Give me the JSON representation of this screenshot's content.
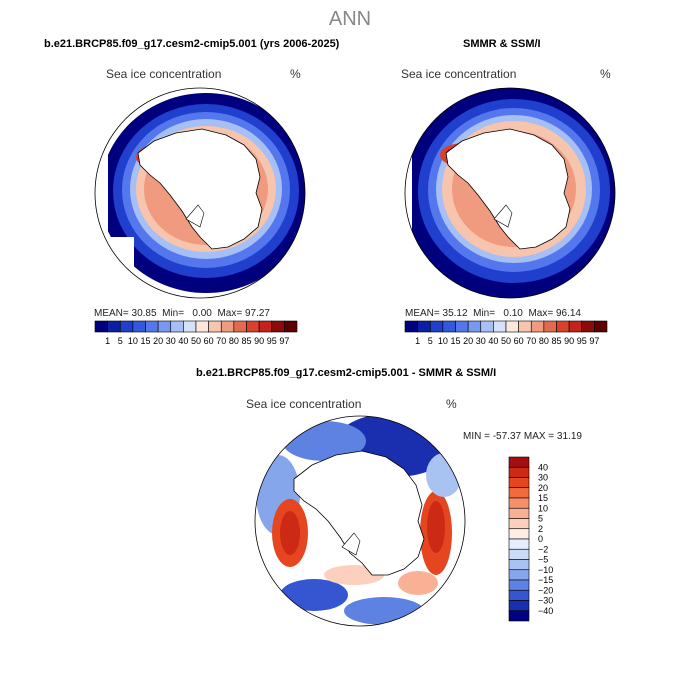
{
  "header": {
    "title": "ANN"
  },
  "panels": [
    {
      "title": "b.e21.BRCP85.f09_g17.cesm2-cmip5.001 (yrs 2006-2025)",
      "variable": "Sea ice concentration",
      "unit": "%",
      "stats": {
        "mean_label": "MEAN=",
        "mean": "30.85",
        "min_label": "Min=",
        "min": "0.00",
        "max_label": "Max=",
        "max": "97.27"
      }
    },
    {
      "title": "SMMR & SSM/I",
      "variable": "Sea ice concentration",
      "unit": "%",
      "stats": {
        "mean_label": "MEAN=",
        "mean": "35.12",
        "min_label": "Min=",
        "min": "0.10",
        "max_label": "Max=",
        "max": "96.14"
      }
    },
    {
      "title": "b.e21.BRCP85.f09_g17.cesm2-cmip5.001 - SMMR & SSM/I",
      "variable": "Sea ice concentration",
      "unit": "%",
      "minmax": "MIN = -57.37 MAX =  31.19"
    }
  ],
  "colorbar_abs": {
    "labels": [
      "1",
      "5",
      "10",
      "15",
      "20",
      "30",
      "40",
      "50",
      "60",
      "70",
      "80",
      "85",
      "90",
      "95",
      "97"
    ],
    "colors": [
      "#00007f",
      "#0a1fa3",
      "#1f3fcc",
      "#3358e0",
      "#5577ee",
      "#7799f2",
      "#a6bff5",
      "#d4e1f8",
      "#fde6dc",
      "#f7c4ad",
      "#f09a80",
      "#e46a4f",
      "#d9412b",
      "#c4221a",
      "#8c0a0a",
      "#5c0000"
    ]
  },
  "colorbar_diff": {
    "labels": [
      "40",
      "30",
      "20",
      "15",
      "10",
      "5",
      "2",
      "0",
      "−2",
      "−5",
      "−10",
      "−15",
      "−20",
      "−30",
      "−40"
    ],
    "colors": [
      "#a50f0f",
      "#cc2a14",
      "#e5461f",
      "#f26b3c",
      "#f7906a",
      "#fab095",
      "#fcd0bd",
      "#fdeee6",
      "#e6eefb",
      "#c9dbf7",
      "#a8c3f2",
      "#86a6ec",
      "#5e82e2",
      "#3556d0",
      "#1a2fb0",
      "#000080"
    ]
  }
}
